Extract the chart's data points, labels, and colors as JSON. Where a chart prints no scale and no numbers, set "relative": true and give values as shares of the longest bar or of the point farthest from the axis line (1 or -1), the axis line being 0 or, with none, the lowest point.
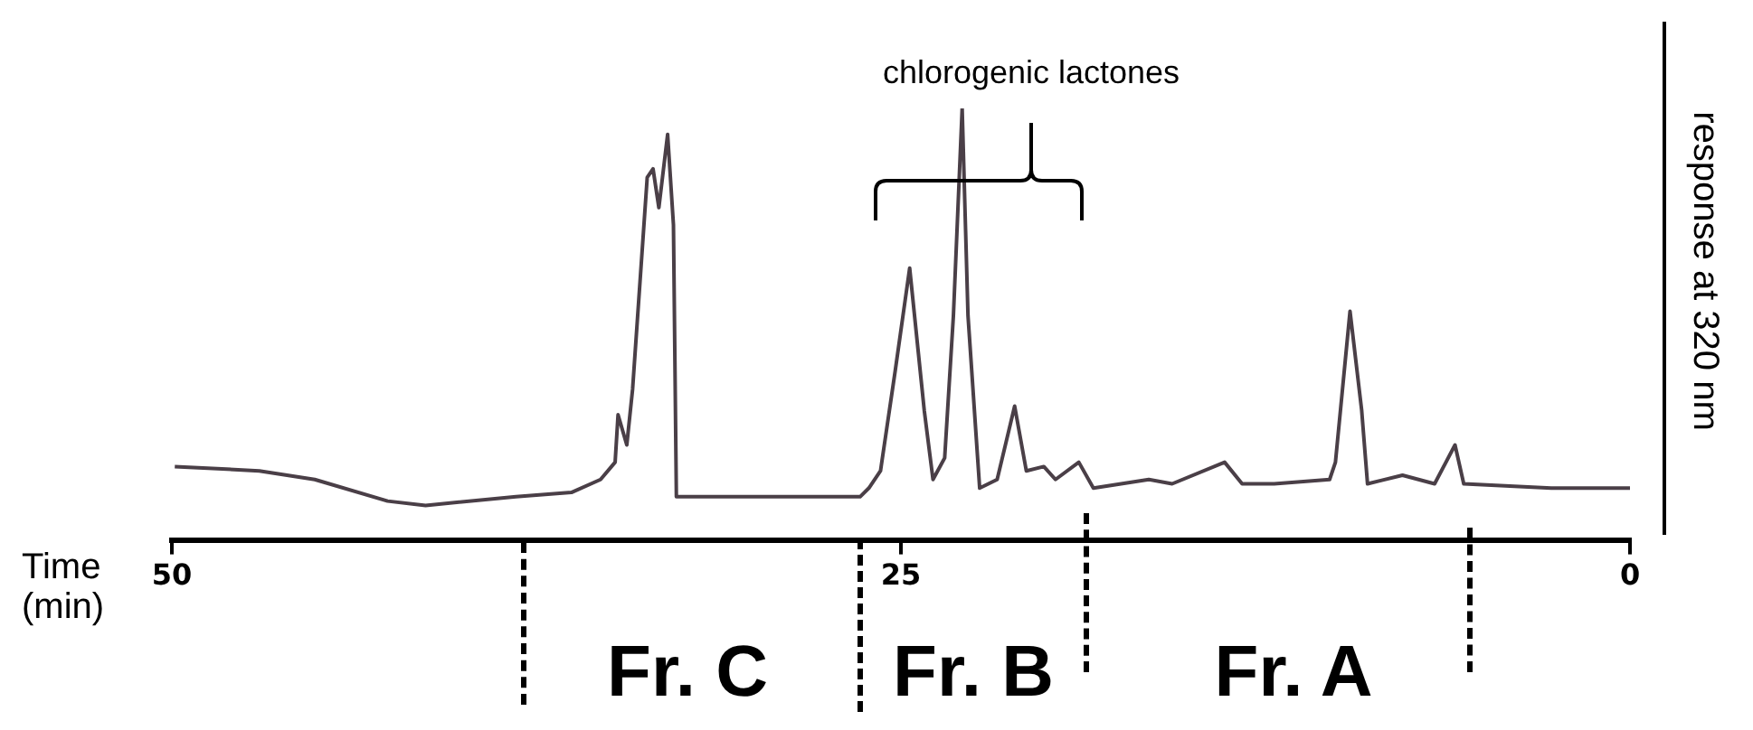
{
  "chart_data": {
    "type": "line",
    "relative": true,
    "xlabel": "Time (min)",
    "ylabel": "response at 320 nm",
    "annotations": [
      "chlorogenic lactones",
      "Fr. C",
      "Fr. B",
      "Fr. A"
    ],
    "xlim": [
      50,
      0
    ],
    "xticks": [
      50,
      25,
      0
    ],
    "grid": false,
    "legend": false,
    "marker": "none",
    "line_style": "solid",
    "color": "#4a3f47",
    "x": [
      49.9,
      47.0,
      45.1,
      42.6,
      41.3,
      38.2,
      36.3,
      35.3,
      34.8,
      34.7,
      34.4,
      34.2,
      33.7,
      33.5,
      33.3,
      33.0,
      32.8,
      32.7,
      29.9,
      26.4,
      26.1,
      25.7,
      25.2,
      24.7,
      24.2,
      23.9,
      23.5,
      23.2,
      22.9,
      22.7,
      22.3,
      21.7,
      21.1,
      20.7,
      20.1,
      19.7,
      18.9,
      18.4,
      16.5,
      15.7,
      13.9,
      13.3,
      12.2,
      10.3,
      10.1,
      9.6,
      9.2,
      9.0,
      7.8,
      6.7,
      6.0,
      5.7,
      2.7,
      0.0
    ],
    "values": [
      0.17,
      0.16,
      0.14,
      0.09,
      0.08,
      0.1,
      0.11,
      0.14,
      0.18,
      0.29,
      0.22,
      0.35,
      0.84,
      0.86,
      0.77,
      0.94,
      0.73,
      0.1,
      0.1,
      0.1,
      0.12,
      0.16,
      0.39,
      0.63,
      0.3,
      0.14,
      0.19,
      0.52,
      1,
      0.52,
      0.12,
      0.14,
      0.31,
      0.16,
      0.17,
      0.14,
      0.18,
      0.12,
      0.14,
      0.13,
      0.18,
      0.13,
      0.13,
      0.14,
      0.18,
      0.53,
      0.3,
      0.13,
      0.15,
      0.13,
      0.22,
      0.13,
      0.12,
      0.12
    ]
  }
}
